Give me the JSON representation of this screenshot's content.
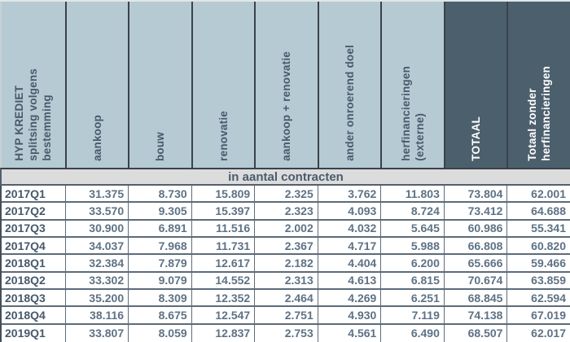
{
  "colors": {
    "header_light_bg": "#b6cad3",
    "header_dark_bg": "#4c5f6d",
    "band_bg": "#dcdcdc",
    "header_text": "#47596b",
    "header_dark_text": "#ffffff",
    "label_text": "#47596b",
    "value_text": "#5e7285",
    "grid_border": "#5c6b79"
  },
  "table": {
    "band_label": "in aantal contracten",
    "columns": [
      {
        "label": "HYP KREDIET\nsplitsing volgens\nbestemming",
        "theme": "light"
      },
      {
        "label": "aankoop",
        "theme": "light"
      },
      {
        "label": "bouw",
        "theme": "light"
      },
      {
        "label": "renovatie",
        "theme": "light"
      },
      {
        "label": "aankoop + renovatie",
        "theme": "light"
      },
      {
        "label": "ander onroerend doel",
        "theme": "light"
      },
      {
        "label": "herfinancieringen\n(externe)",
        "theme": "light"
      },
      {
        "label": "TOTAAL",
        "theme": "dark"
      },
      {
        "label": "Totaal zonder\nherfinancieringen",
        "theme": "dark"
      }
    ],
    "rows": [
      [
        "2017Q1",
        "31.375",
        "8.730",
        "15.809",
        "2.325",
        "3.762",
        "11.803",
        "73.804",
        "62.001"
      ],
      [
        "2017Q2",
        "33.570",
        "9.305",
        "15.397",
        "2.323",
        "4.093",
        "8.724",
        "73.412",
        "64.688"
      ],
      [
        "2017Q3",
        "30.900",
        "6.891",
        "11.516",
        "2.002",
        "4.032",
        "5.645",
        "60.986",
        "55.341"
      ],
      [
        "2017Q4",
        "34.037",
        "7.968",
        "11.731",
        "2.367",
        "4.717",
        "5.988",
        "66.808",
        "60.820"
      ],
      [
        "2018Q1",
        "32.384",
        "7.879",
        "12.617",
        "2.182",
        "4.404",
        "6.200",
        "65.666",
        "59.466"
      ],
      [
        "2018Q2",
        "33.302",
        "9.079",
        "14.552",
        "2.313",
        "4.613",
        "6.815",
        "70.674",
        "63.859"
      ],
      [
        "2018Q3",
        "35.200",
        "8.309",
        "12.352",
        "2.464",
        "4.269",
        "6.251",
        "68.845",
        "62.594"
      ],
      [
        "2018Q4",
        "38.116",
        "8.675",
        "12.547",
        "2.751",
        "4.930",
        "7.119",
        "74.138",
        "67.019"
      ],
      [
        "2019Q1",
        "33.807",
        "8.059",
        "12.837",
        "2.753",
        "4.561",
        "6.490",
        "68.507",
        "62.017"
      ]
    ]
  },
  "chart_data": {
    "type": "table",
    "title": "HYP KREDIET splitsing volgens bestemming",
    "subtitle": "in aantal contracten",
    "categories": [
      "2017Q1",
      "2017Q2",
      "2017Q3",
      "2017Q4",
      "2018Q1",
      "2018Q2",
      "2018Q3",
      "2018Q4",
      "2019Q1"
    ],
    "series": [
      {
        "name": "aankoop",
        "values": [
          31375,
          33570,
          30900,
          34037,
          32384,
          33302,
          35200,
          38116,
          33807
        ]
      },
      {
        "name": "bouw",
        "values": [
          8730,
          9305,
          6891,
          7968,
          7879,
          9079,
          8309,
          8675,
          8059
        ]
      },
      {
        "name": "renovatie",
        "values": [
          15809,
          15397,
          11516,
          11731,
          12617,
          14552,
          12352,
          12547,
          12837
        ]
      },
      {
        "name": "aankoop + renovatie",
        "values": [
          2325,
          2323,
          2002,
          2367,
          2182,
          2313,
          2464,
          2751,
          2753
        ]
      },
      {
        "name": "ander onroerend doel",
        "values": [
          3762,
          4093,
          4032,
          4717,
          4404,
          4613,
          4269,
          4930,
          4561
        ]
      },
      {
        "name": "herfinancieringen (externe)",
        "values": [
          11803,
          8724,
          5645,
          5988,
          6200,
          6815,
          6251,
          7119,
          6490
        ]
      },
      {
        "name": "TOTAAL",
        "values": [
          73804,
          73412,
          60986,
          66808,
          65666,
          70674,
          68845,
          74138,
          68507
        ]
      },
      {
        "name": "Totaal zonder herfinancieringen",
        "values": [
          62001,
          64688,
          55341,
          60820,
          59466,
          63859,
          62594,
          67019,
          62017
        ]
      }
    ]
  }
}
